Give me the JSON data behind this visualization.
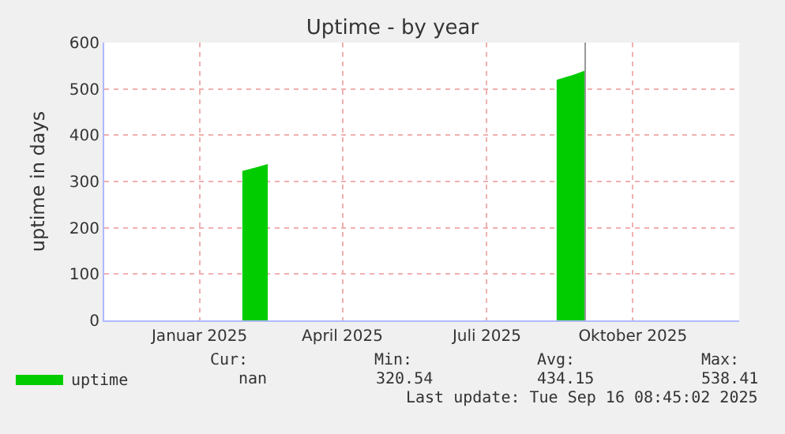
{
  "chart_data": {
    "type": "area",
    "title": "Uptime - by year",
    "ylabel": "uptime in days",
    "x": [
      "2025-02-12",
      "2025-02-20",
      "2025-02-28",
      "2025-03-01",
      "2025-08-29",
      "2025-09-07",
      "2025-09-16"
    ],
    "series": [
      {
        "name": "uptime",
        "color": "#00cc00",
        "values": [
          321,
          328,
          336,
          null,
          518,
          527,
          538
        ]
      }
    ],
    "xlim": [
      "2024-11-17",
      "2025-12-22"
    ],
    "xticks": [
      {
        "value": "2025-01-16",
        "label": "Januar 2025"
      },
      {
        "value": "2025-04-16",
        "label": "April 2025"
      },
      {
        "value": "2025-07-16",
        "label": "Juli 2025"
      },
      {
        "value": "2025-10-16",
        "label": "Oktober 2025"
      }
    ],
    "ylim": [
      0,
      600
    ],
    "yticks": [
      0,
      100,
      200,
      300,
      400,
      500,
      600
    ],
    "grid": true,
    "legend": "bottom left",
    "ref_lines": [
      {
        "axis": "x",
        "value": "2025-09-16",
        "color": "#999999"
      }
    ],
    "annotations": [
      "Cur:",
      "Min:",
      "Avg:",
      "Max:",
      "nan",
      "320.54",
      "434.15",
      "538.41",
      "Last update: Tue Sep 16 08:45:02 2025"
    ]
  }
}
